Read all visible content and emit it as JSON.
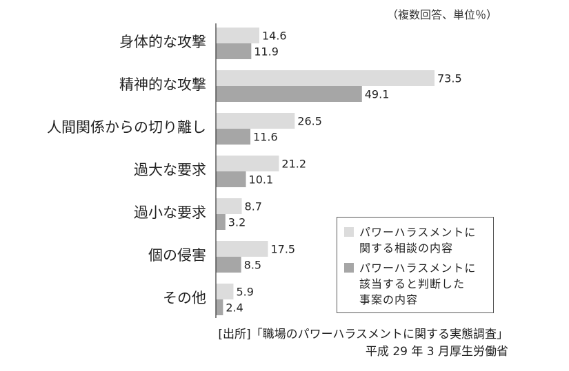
{
  "note": "（複数回答、単位％）",
  "chart_data": {
    "type": "bar",
    "orientation": "horizontal",
    "categories": [
      "身体的な攻撃",
      "精神的な攻撃",
      "人間関係からの切り離し",
      "過大な要求",
      "過小な要求",
      "個の侵害",
      "その他"
    ],
    "series": [
      {
        "name": "パワーハラスメントに関する相談の内容",
        "color": "#dcdcdc",
        "values": [
          14.6,
          73.5,
          26.5,
          21.2,
          8.7,
          17.5,
          5.9
        ]
      },
      {
        "name": "パワーハラスメントに該当すると判断した事案の内容",
        "color": "#a6a6a6",
        "values": [
          11.9,
          49.1,
          11.6,
          10.1,
          3.2,
          8.5,
          2.4
        ]
      }
    ],
    "value_labels": [
      [
        "14.6",
        "73.5",
        "26.5",
        "21.2",
        "8.7",
        "17.5",
        "5.9"
      ],
      [
        "11.9",
        "49.1",
        "11.6",
        "10.1",
        "3.2",
        "8.5",
        "2.4"
      ]
    ],
    "xlim": [
      0,
      80
    ],
    "grid": false,
    "legend_position": "bottom-right"
  },
  "legend": {
    "items": [
      {
        "line1": "パワーハラスメントに",
        "line2": "関する相談の内容",
        "line3": ""
      },
      {
        "line1": "パワーハラスメントに",
        "line2": "該当すると判断した",
        "line3": "事案の内容"
      }
    ]
  },
  "source": {
    "line1": "[出所]「職場のパワーハラスメントに関する実態調査」",
    "line2": "平成 29 年 3 月厚生労働省"
  }
}
